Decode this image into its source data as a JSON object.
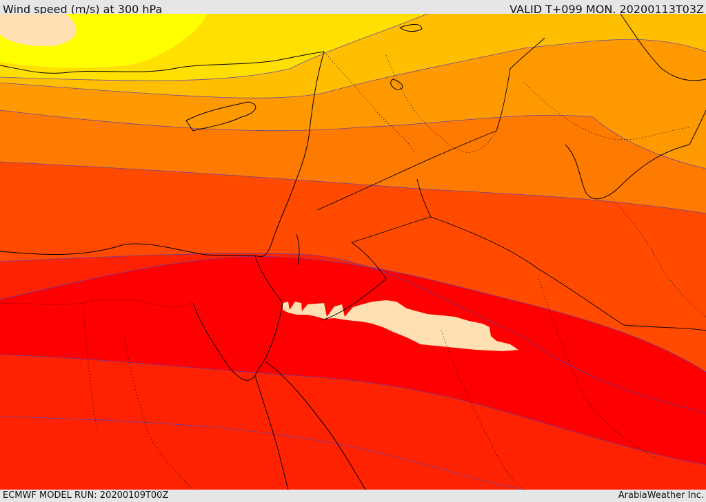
{
  "header": {
    "title": "Wind speed (m/s) at 300 hPa",
    "valid": "VALID T+099 MON. 20200113T03Z"
  },
  "footer": {
    "model_run": "ECMWF MODEL RUN: 20200109T00Z",
    "credit": "ArabiaWeather Inc."
  },
  "map": {
    "field": "wind speed at 300 hPa",
    "unit": "m/s",
    "colors": {
      "band_pale": "#ffe0b2",
      "band_yellow": "#ffff00",
      "band_gold": "#ffe000",
      "band_amber": "#ffbf00",
      "band_orange": "#ff9900",
      "band_deep_orange": "#ff7a00",
      "band_red_orange": "#ff4a00",
      "band_red": "#ff2200",
      "band_core": "#ff0000",
      "contour": "#5a3fb0",
      "coast": "#000000"
    }
  }
}
